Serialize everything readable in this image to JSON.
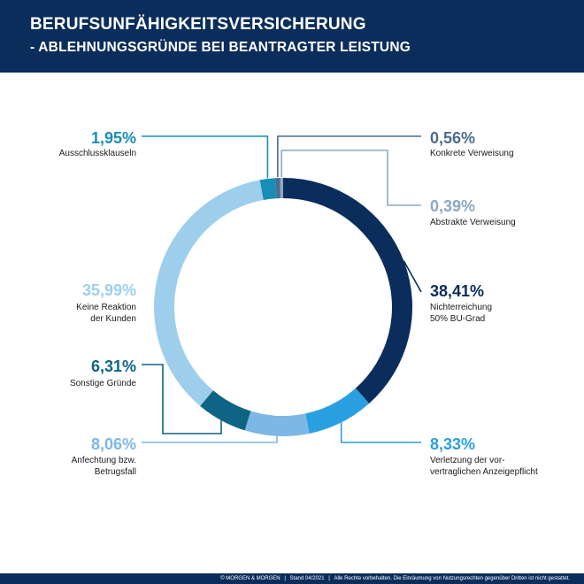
{
  "header": {
    "title_line1": "BERUFSUNFÄHIGKEITSVERSICHERUNG",
    "title_line2": "- ABLEHNUNGSGRÜNDE BEI BEANTRAGTER LEISTUNG"
  },
  "chart_data": {
    "type": "pie",
    "variant": "donut",
    "start": "top, clockwise",
    "slices": [
      {
        "label": "Nichterreichung 50% BU-Grad",
        "label_lines": [
          "Nichterreichung",
          "50% BU-Grad"
        ],
        "value_text": "38,41%",
        "value": 38.41,
        "color": "#0b2d5b"
      },
      {
        "label": "Verletzung der vorvertraglichen Anzeigepflicht",
        "label_lines": [
          "Verletzung der vor-",
          "vertraglichen Anzeigepflicht"
        ],
        "value_text": "8,33%",
        "value": 8.33,
        "color": "#2a9fdf"
      },
      {
        "label": "Anfechtung bzw. Betrugsfall",
        "label_lines": [
          "Anfechtung bzw.",
          "Betrugsfall"
        ],
        "value_text": "8,06%",
        "value": 8.06,
        "color": "#7db7e6"
      },
      {
        "label": "Sonstige Gründe",
        "label_lines": [
          "Sonstige Gründe"
        ],
        "value_text": "6,31%",
        "value": 6.31,
        "color": "#0e6485"
      },
      {
        "label": "Keine Reaktion der Kunden",
        "label_lines": [
          "Keine Reaktion",
          "der Kunden"
        ],
        "value_text": "35,99%",
        "value": 35.99,
        "color": "#9dcfec"
      },
      {
        "label": "Ausschlussklauseln",
        "label_lines": [
          "Ausschlussklauseln"
        ],
        "value_text": "1,95%",
        "value": 1.95,
        "color": "#1a8db6"
      },
      {
        "label": "Konkrete Verweisung",
        "label_lines": [
          "Konkrete Verweisung"
        ],
        "value_text": "0,56%",
        "value": 0.56,
        "color": "#4a6c8f"
      },
      {
        "label": "Abstrakte Verweisung",
        "label_lines": [
          "Abstrakte Verweisung"
        ],
        "value_text": "0,39%",
        "value": 0.39,
        "color": "#8ea8c4"
      }
    ]
  },
  "footer": {
    "copyright": "© MORGEN & MORGEN",
    "stand": "Stand 04/2021",
    "rights": "Alle Rechte vorbehalten. Die Einräumung von Nutzungsrechten gegenüber Dritten ist nicht gestattet."
  }
}
